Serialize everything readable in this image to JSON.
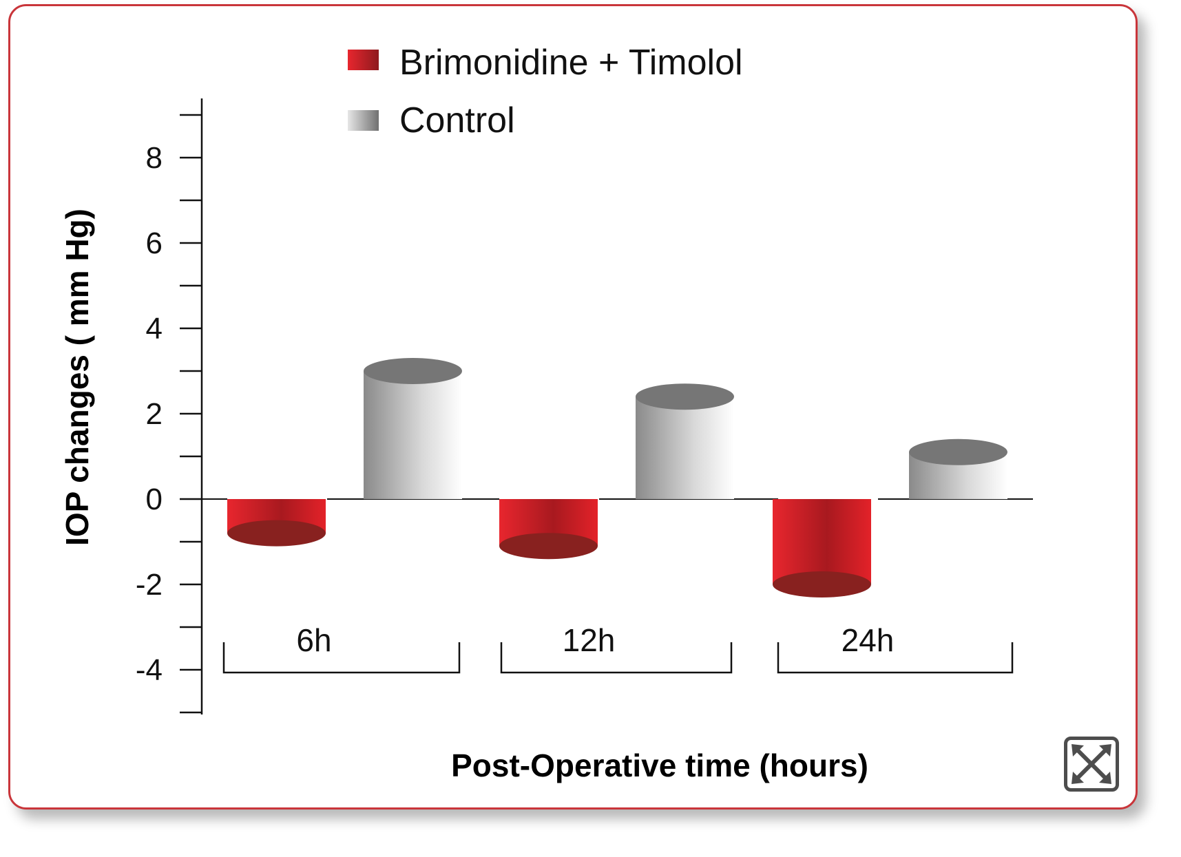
{
  "chart_data": {
    "type": "bar",
    "categories": [
      "6h",
      "12h",
      "24h"
    ],
    "series": [
      {
        "name": "Brimonidine + Timolol",
        "values": [
          -0.8,
          -1.1,
          -2.0
        ]
      },
      {
        "name": "Control",
        "values": [
          3.0,
          2.4,
          1.1
        ]
      }
    ],
    "ylabel": "IOP changes ( mm Hg)",
    "xlabel": "Post-Operative time (hours)",
    "yticks": [
      "8",
      "6",
      "4",
      "2",
      "0",
      "-2",
      "-4"
    ],
    "ylim": [
      -5,
      9
    ],
    "colors": {
      "series_1": "#d41f28",
      "series_2": "#c8c8c8",
      "frame": "#c9353a"
    }
  },
  "controls": {
    "expand_icon": "expand-icon"
  }
}
